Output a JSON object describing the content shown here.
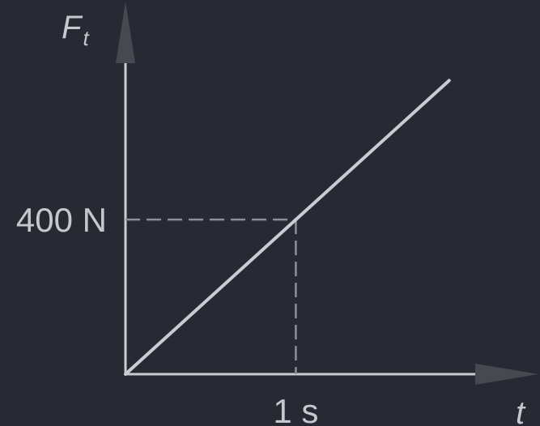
{
  "chart_data": {
    "type": "line",
    "title": "",
    "ylabel": "F",
    "ylabel_subscript": "t",
    "xlabel": "t",
    "x_tick_label": "1 s",
    "y_tick_label": "400 N",
    "series": [
      {
        "x": [
          0,
          1.9
        ],
        "y": [
          0,
          760
        ]
      }
    ],
    "marked_point": {
      "x": 1,
      "y": 400
    },
    "xlim": [
      0,
      2.4
    ],
    "ylim": [
      0,
      960
    ],
    "grid": false,
    "colors": {
      "background": "#272a33",
      "line": "#c9ccd2",
      "axis": "#c9ccd2",
      "arrow": "#46494f",
      "guide": "#8e9198",
      "text": "#c6c8cd"
    }
  }
}
